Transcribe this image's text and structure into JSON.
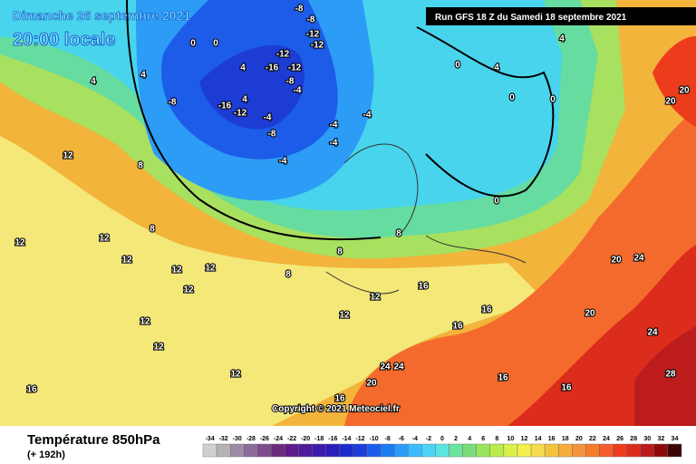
{
  "header": {
    "date": "Dimanche 26 septembre 2021",
    "time": "20:00 locale",
    "run": "Run GFS 18 Z du Samedi 18 septembre 2021"
  },
  "copyright": "Copyright © 2021 Meteociel.fr",
  "footer": {
    "title": "Température 850hPa",
    "lead": "(+ 192h)"
  },
  "scale": {
    "values": [
      -34,
      -32,
      -30,
      -28,
      -26,
      -24,
      -22,
      -20,
      -18,
      -16,
      -14,
      -12,
      -10,
      -8,
      -6,
      -4,
      -2,
      0,
      2,
      4,
      6,
      8,
      10,
      12,
      14,
      16,
      18,
      20,
      22,
      24,
      26,
      28,
      30,
      32,
      34
    ],
    "colors": [
      "#d0d0d0",
      "#b4b4b4",
      "#9c8ca8",
      "#8c6c9c",
      "#7c4c8c",
      "#6c2c7c",
      "#5c1c8c",
      "#4c1c9c",
      "#3c1cac",
      "#2c1cbc",
      "#1c2ccc",
      "#1c3cdc",
      "#1c5cec",
      "#1c7cf4",
      "#2c9cf8",
      "#3cbcfc",
      "#4cd4f8",
      "#5ce4e0",
      "#6ce4a0",
      "#7cdc7c",
      "#9ce45c",
      "#bcec4c",
      "#dcf04c",
      "#f4f04c",
      "#f4dc4c",
      "#f4c43c",
      "#f4ac3c",
      "#f4943c",
      "#f47c2c",
      "#f45c2c",
      "#ec3c1c",
      "#dc2c1c",
      "#bc1c1c",
      "#8c0c0c",
      "#3c0404"
    ]
  },
  "isotherms": [
    -8,
    -8,
    -12,
    -12,
    -12,
    -16,
    -12,
    -8,
    -4,
    -12,
    -16,
    -8,
    -4,
    -8,
    -4,
    -4,
    -4,
    -4,
    0,
    0,
    4,
    4,
    4,
    4,
    0,
    4,
    0,
    0,
    4,
    8,
    8,
    8,
    12,
    12,
    12,
    12,
    12,
    12,
    12,
    12,
    12,
    12,
    16,
    12,
    12,
    16,
    16,
    16,
    16,
    20,
    24,
    24,
    20,
    20,
    24,
    24,
    28,
    20,
    20,
    16,
    16,
    8,
    8,
    0
  ]
}
